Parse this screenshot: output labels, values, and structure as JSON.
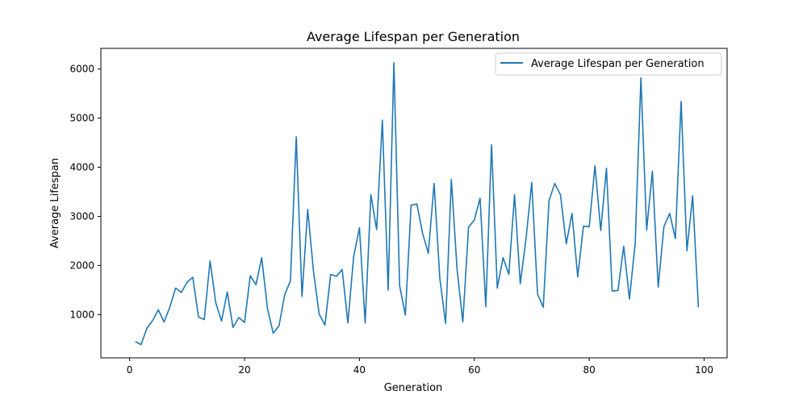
{
  "chart_data": {
    "type": "line",
    "title": "Average Lifespan per Generation",
    "xlabel": "Generation",
    "ylabel": "Average Lifespan",
    "xlim": [
      -5,
      104
    ],
    "ylim": [
      120,
      6420
    ],
    "xticks": [
      0,
      20,
      40,
      60,
      80,
      100
    ],
    "yticks": [
      1000,
      2000,
      3000,
      4000,
      5000,
      6000
    ],
    "legend_position": "top-right",
    "grid": false,
    "series": [
      {
        "name": "Average Lifespan per Generation",
        "color": "#1f77b4",
        "x": [
          1,
          2,
          3,
          4,
          5,
          6,
          7,
          8,
          9,
          10,
          11,
          12,
          13,
          14,
          15,
          16,
          17,
          18,
          19,
          20,
          21,
          22,
          23,
          24,
          25,
          26,
          27,
          28,
          29,
          30,
          31,
          32,
          33,
          34,
          35,
          36,
          37,
          38,
          39,
          40,
          41,
          42,
          43,
          44,
          45,
          46,
          47,
          48,
          49,
          50,
          51,
          52,
          53,
          54,
          55,
          56,
          57,
          58,
          59,
          60,
          61,
          62,
          63,
          64,
          65,
          66,
          67,
          68,
          69,
          70,
          71,
          72,
          73,
          74,
          75,
          76,
          77,
          78,
          79,
          80,
          81,
          82,
          83,
          84,
          85,
          86,
          87,
          88,
          89,
          90,
          91,
          92,
          93,
          94,
          95,
          96,
          97,
          98,
          99
        ],
        "y": [
          450,
          390,
          720,
          880,
          1100,
          850,
          1150,
          1540,
          1450,
          1660,
          1760,
          950,
          900,
          2090,
          1240,
          870,
          1460,
          740,
          940,
          840,
          1790,
          1610,
          2160,
          1120,
          620,
          770,
          1410,
          1690,
          4620,
          1370,
          3140,
          1890,
          1010,
          790,
          1820,
          1780,
          1920,
          830,
          2180,
          2770,
          830,
          3440,
          2730,
          4960,
          1500,
          6130,
          1590,
          990,
          3230,
          3250,
          2650,
          2250,
          3670,
          1740,
          820,
          3750,
          1920,
          850,
          2780,
          2930,
          3370,
          1160,
          4460,
          1540,
          2160,
          1820,
          3440,
          1630,
          2540,
          3690,
          1420,
          1150,
          3320,
          3670,
          3440,
          2440,
          3060,
          1770,
          2800,
          2790,
          4030,
          2710,
          3980,
          1480,
          1490,
          2390,
          1320,
          2450,
          5820,
          2720,
          3920,
          1560,
          2790,
          3060,
          2550,
          5340,
          2300,
          3420,
          1150
        ]
      }
    ]
  }
}
